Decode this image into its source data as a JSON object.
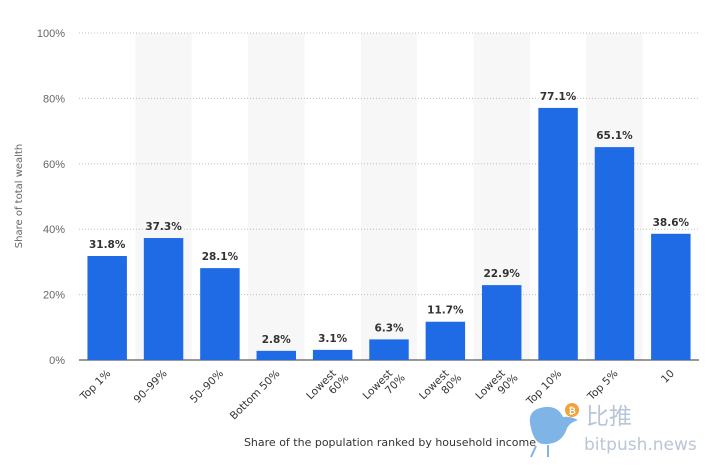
{
  "chart_data": {
    "type": "bar",
    "categories": [
      "Top 1%",
      "90–99%",
      "50–90%",
      "Bottom 50%",
      "Lowest 60%",
      "Lowest 70%",
      "Lowest 80%",
      "Lowest 90%",
      "Top 10%",
      "Top 5%",
      "10"
    ],
    "category_lines": [
      [
        "Top 1%"
      ],
      [
        "90–99%"
      ],
      [
        "50–90%"
      ],
      [
        "Bottom 50%"
      ],
      [
        "Lowest",
        "60%"
      ],
      [
        "Lowest",
        "70%"
      ],
      [
        "Lowest",
        "80%"
      ],
      [
        "Lowest",
        "90%"
      ],
      [
        "Top 10%"
      ],
      [
        "Top 5%"
      ],
      [
        "10"
      ]
    ],
    "values": [
      31.8,
      37.3,
      28.1,
      2.8,
      3.1,
      6.3,
      11.7,
      22.9,
      77.1,
      65.1,
      38.6
    ],
    "value_labels": [
      "31.8%",
      "37.3%",
      "28.1%",
      "2.8%",
      "3.1%",
      "6.3%",
      "11.7%",
      "22.9%",
      "77.1%",
      "65.1%",
      "38.6%"
    ],
    "ylabel": "Share of total wealth",
    "xlabel": "Share of the population ranked by household income",
    "ylim": [
      0,
      100
    ],
    "yticks": [
      "0%",
      "20%",
      "40%",
      "60%",
      "80%",
      "100%"
    ],
    "grid": true,
    "bar_color": "#1f6be6",
    "band_color": "#f7f7f7",
    "watermark": {
      "cn": "比推",
      "en": "bitpush.news"
    }
  }
}
